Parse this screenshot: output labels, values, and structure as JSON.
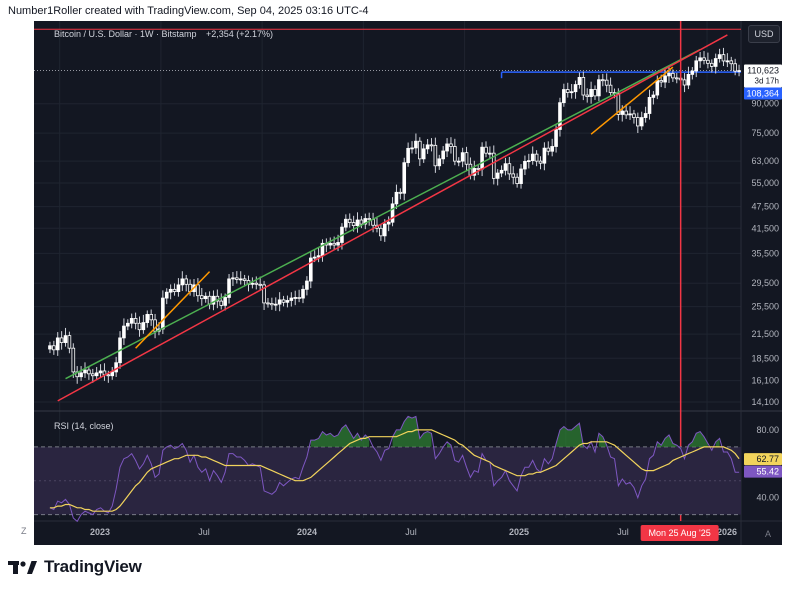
{
  "attribution": "Number1Roller created with TradingView.com, Sep 04, 2025 03:16 UTC-4",
  "brand": {
    "name": "TradingView",
    "icon": "tradingview-logo-icon"
  },
  "colors": {
    "background": "#131722",
    "grid": "#1f2430",
    "candle_up": "#ffffff",
    "candle_down": "#ffffff",
    "green_line": "#4caf50",
    "red_line": "#f23645",
    "orange_line": "#ff9800",
    "blue_level": "#2962ff",
    "rsi_line": "#7e57c2",
    "rsi_ma": "#f2d45c",
    "rsi_band": "#2a2540",
    "rsi_peak_fill": "#2e7d32"
  },
  "chart_data": [
    {
      "type": "candlestick",
      "title": "Bitcoin / U.S. Dollar · 1W · Bitstamp",
      "change_label": "+2,354 (+2.17%)",
      "currency_button": "USD",
      "scale": "log",
      "ylim": [
        13500,
        145000
      ],
      "y_ticks": [
        "90,000",
        "75,000",
        "63,000",
        "55,000",
        "47,500",
        "41,500",
        "35,500",
        "29,500",
        "25,500",
        "21,500",
        "18,500",
        "16,100",
        "14,100"
      ],
      "x_ticks": [
        "2023",
        "Jul",
        "2024",
        "Jul",
        "2025",
        "Jul",
        "2026"
      ],
      "price_labels": [
        {
          "value": 110623,
          "text": "110,623",
          "sub": "3d 17h",
          "style": "current"
        },
        {
          "value": 108364,
          "text": "108,364",
          "style": "blue"
        }
      ],
      "close_series": [
        20000,
        19500,
        21000,
        20400,
        21300,
        19700,
        17000,
        16500,
        16900,
        17200,
        16800,
        16600,
        16900,
        17100,
        16700,
        16600,
        17000,
        18000,
        21000,
        22600,
        23000,
        23700,
        23000,
        22100,
        23100,
        24300,
        23500,
        21900,
        22200,
        26900,
        27900,
        28400,
        28000,
        29200,
        30300,
        29300,
        28000,
        29200,
        27300,
        26800,
        27200,
        25900,
        27200,
        26400,
        25700,
        27000,
        30300,
        30500,
        30200,
        30300,
        30000,
        29300,
        29500,
        29300,
        29200,
        26100,
        26000,
        25800,
        25900,
        26600,
        26200,
        26500,
        26900,
        27000,
        26900,
        28400,
        29900,
        34500,
        34700,
        35000,
        37800,
        37400,
        37800,
        37400,
        38000,
        41800,
        43900,
        43000,
        42200,
        43700,
        42600,
        44100,
        43800,
        42300,
        41500,
        39600,
        42600,
        43100,
        48300,
        51900,
        51600,
        62400,
        68200,
        68400,
        71300,
        63900,
        68000,
        69700,
        69500,
        61200,
        63900,
        67100,
        70100,
        69000,
        63000,
        63000,
        66400,
        61800,
        57700,
        60200,
        60000,
        68700,
        66200,
        66200,
        56600,
        58500,
        59500,
        62000,
        58200,
        57000,
        54800,
        60000,
        62900,
        63200,
        65800,
        63000,
        62200,
        68300,
        67000,
        69000,
        76700,
        90600,
        98300,
        96500,
        97000,
        101400,
        106000,
        95000,
        94100,
        98400,
        94500,
        104500,
        104200,
        101000,
        96500,
        96100,
        84200,
        86000,
        84000,
        84500,
        82600,
        78400,
        82600,
        84700,
        93600,
        95000,
        104000,
        103000,
        107000,
        108700,
        105700,
        105500,
        104400,
        101100,
        108000,
        110300,
        117500,
        119700,
        117900,
        115700,
        113500,
        119200,
        122100,
        117400,
        117500,
        115400,
        110200,
        110600
      ],
      "trendlines": [
        {
          "name": "green",
          "from": {
            "t": 4,
            "p": 16300
          },
          "to": {
            "t": 167,
            "p": 126000
          }
        },
        {
          "name": "red",
          "from": {
            "t": 2,
            "p": 14200
          },
          "to": {
            "t": 174,
            "p": 138000
          }
        },
        {
          "name": "orange-1",
          "from": {
            "t": 22,
            "p": 19700
          },
          "to": {
            "t": 41,
            "p": 31700
          }
        },
        {
          "name": "orange-2",
          "from": {
            "t": 139,
            "p": 74500
          },
          "to": {
            "t": 160,
            "p": 113000
          }
        }
      ],
      "levels": [
        {
          "name": "blue-resistance",
          "value": 109500,
          "from_t": 116
        },
        {
          "name": "dotted-current",
          "value": 110623
        },
        {
          "name": "red-top",
          "value": 143000
        }
      ],
      "vertical_marker": {
        "t": 162,
        "label": "Mon 25 Aug '25"
      }
    },
    {
      "type": "line",
      "title": "RSI (14, close)",
      "ylim": [
        28,
        90
      ],
      "y_ticks": [
        "80.00",
        "40.00"
      ],
      "bands": [
        30,
        70
      ],
      "value_labels": [
        {
          "value": 62.77,
          "text": "62.77",
          "style": "yellow"
        },
        {
          "value": 55.42,
          "text": "55.42",
          "style": "purple"
        }
      ],
      "series": [
        {
          "name": "RSI",
          "values": [
            34,
            33,
            38,
            37,
            39,
            36,
            28,
            26,
            30,
            32,
            31,
            30,
            33,
            34,
            32,
            31,
            35,
            45,
            58,
            63,
            64,
            66,
            62,
            57,
            60,
            65,
            60,
            52,
            54,
            68,
            70,
            71,
            69,
            70,
            72,
            68,
            61,
            65,
            58,
            55,
            57,
            50,
            56,
            53,
            49,
            55,
            66,
            66,
            64,
            64,
            62,
            59,
            60,
            59,
            58,
            44,
            43,
            42,
            44,
            49,
            47,
            49,
            51,
            52,
            51,
            58,
            64,
            74,
            74,
            75,
            79,
            77,
            78,
            76,
            77,
            81,
            83,
            79,
            75,
            78,
            74,
            77,
            75,
            70,
            67,
            62,
            68,
            69,
            76,
            80,
            80,
            85,
            88,
            87,
            88,
            75,
            78,
            79,
            78,
            63,
            66,
            70,
            73,
            71,
            62,
            61,
            65,
            58,
            52,
            56,
            55,
            66,
            62,
            61,
            47,
            50,
            52,
            56,
            50,
            47,
            44,
            53,
            58,
            58,
            62,
            57,
            55,
            63,
            60,
            63,
            72,
            80,
            82,
            80,
            80,
            82,
            84,
            71,
            69,
            73,
            67,
            78,
            76,
            71,
            64,
            63,
            47,
            51,
            48,
            49,
            46,
            40,
            47,
            51,
            63,
            65,
            73,
            71,
            75,
            77,
            72,
            71,
            69,
            63,
            71,
            73,
            78,
            79,
            76,
            72,
            68,
            73,
            75,
            67,
            67,
            63,
            55,
            55
          ]
        },
        {
          "name": "RSI-based MA",
          "values": [
            34,
            34,
            35,
            35,
            36,
            36,
            35,
            34,
            34,
            33,
            33,
            32,
            32,
            32,
            32,
            32,
            32,
            33,
            35,
            38,
            41,
            44,
            47,
            49,
            52,
            55,
            57,
            58,
            59,
            60,
            61,
            62,
            63,
            63,
            64,
            65,
            65,
            65,
            65,
            64,
            64,
            63,
            62,
            61,
            60,
            59,
            59,
            59,
            59,
            59,
            59,
            59,
            59,
            59,
            59,
            58,
            57,
            56,
            55,
            54,
            53,
            52,
            51,
            50,
            50,
            50,
            51,
            52,
            54,
            56,
            58,
            60,
            62,
            64,
            66,
            68,
            70,
            72,
            73,
            74,
            75,
            75,
            76,
            76,
            76,
            76,
            76,
            76,
            76,
            76,
            77,
            78,
            79,
            79,
            80,
            80,
            80,
            80,
            80,
            79,
            78,
            77,
            76,
            75,
            74,
            72,
            71,
            69,
            67,
            65,
            64,
            63,
            62,
            61,
            59,
            58,
            57,
            56,
            55,
            54,
            53,
            53,
            53,
            54,
            54,
            55,
            55,
            56,
            57,
            58,
            59,
            61,
            63,
            65,
            67,
            69,
            71,
            72,
            72,
            73,
            73,
            73,
            73,
            73,
            72,
            71,
            69,
            67,
            65,
            63,
            61,
            59,
            57,
            56,
            56,
            56,
            57,
            58,
            59,
            60,
            62,
            63,
            64,
            65,
            66,
            67,
            68,
            69,
            70,
            70,
            70,
            70,
            70,
            70,
            69,
            68,
            66,
            63
          ]
        }
      ]
    }
  ],
  "corners": {
    "bottom_left": "Z",
    "bottom_right": "A"
  }
}
